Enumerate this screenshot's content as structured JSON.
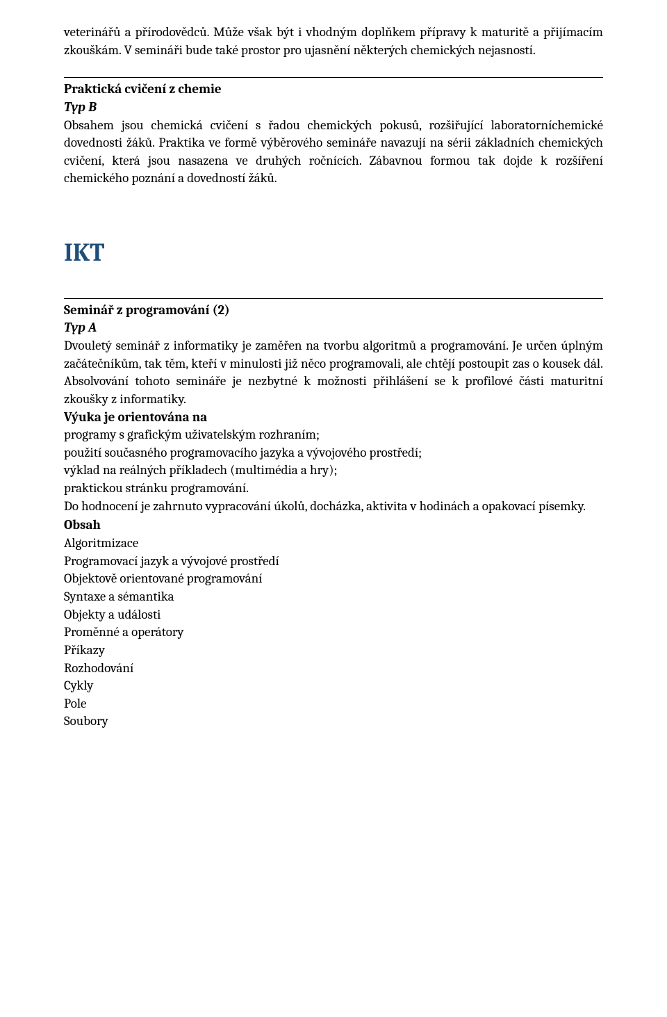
{
  "intro_paragraph": "veterinářů a přírodovědců. Může však být i vhodným doplňkem přípravy k maturitě a přijímacím zkouškám. V semináři bude také prostor pro ujasnění některých chemických nejasností.",
  "section1": {
    "title": "Praktická cvičení z chemie",
    "type": "Typ B",
    "body": "Obsahem jsou chemická cvičení s řadou chemických pokusů, rozšiřující laboratorníchemické dovednosti žáků. Praktika ve formě výběrového semináře navazují na sérii základních chemických cvičení, která jsou nasazena ve druhých ročnících. Zábavnou formou tak dojde k rozšíření chemického poznání a dovedností žáků."
  },
  "main_heading": "IKT",
  "section2": {
    "title": "Seminář z programování (2)",
    "type": "Typ A",
    "body1": "Dvouletý seminář z informatiky je zaměřen na tvorbu algoritmů a programování. Je určen úplným začátečníkům, tak těm, kteří v minulosti již něco programovali, ale chtějí postoupit zas o kousek dál. Absolvování tohoto semináře je nezbytné k možnosti přihlášení se k profilové části maturitní zkoušky z informatiky.",
    "subhead1": "Výuka je orientována na",
    "bullets1": [
      "programy s grafickým uživatelským rozhraním;",
      "použití současného programovacího jazyka a vývojového prostředí;",
      "výklad na reálných příkladech (multimédia a hry);",
      "praktickou stránku programování."
    ],
    "body2": "Do hodnocení je zahrnuto vypracování úkolů, docházka, aktivita v hodinách a opakovací písemky.",
    "obsah_title": "Obsah",
    "obsah_items": [
      "Algoritmizace",
      "Programovací jazyk a vývojové prostředí",
      "Objektově orientované programování",
      "Syntaxe a sémantika",
      "Objekty a události",
      "Proměnné a operátory",
      "Příkazy",
      "Rozhodování",
      "Cykly",
      "Pole",
      "Soubory"
    ]
  },
  "colors": {
    "text": "#000000",
    "heading": "#1f4e79",
    "background": "#ffffff"
  },
  "typography": {
    "body_fontsize_pt": 14,
    "heading_fontsize_pt": 27,
    "font_family": "Cambria"
  }
}
